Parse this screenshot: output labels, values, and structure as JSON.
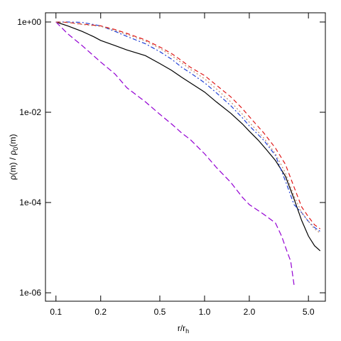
{
  "chart_data": {
    "type": "line",
    "xlabel": "r/r",
    "xlabel_sub": "h",
    "ylabel_parts": [
      "ρ(m) / ρ",
      "0",
      "(m)"
    ],
    "x_scale": "log",
    "y_scale": "log",
    "xlim": [
      0.085,
      6.5
    ],
    "ylim": [
      6.5e-07,
      1.6
    ],
    "x_ticks": [
      0.1,
      0.2,
      0.5,
      1.0,
      2.0,
      5.0
    ],
    "x_tick_labels": [
      "0.1",
      "0.2",
      "0.5",
      "1.0",
      "2.0",
      "5.0"
    ],
    "y_ticks": [
      1,
      0.01,
      0.0001,
      1e-06
    ],
    "y_tick_labels": [
      "1e+00",
      "1e-02",
      "1e-04",
      "1e-06"
    ],
    "grid": false,
    "legend": "none",
    "series": [
      {
        "color": "#000000",
        "dash": "",
        "x": [
          0.1,
          0.12,
          0.15,
          0.18,
          0.2,
          0.25,
          0.3,
          0.4,
          0.5,
          0.6,
          0.7,
          0.8,
          1.0,
          1.2,
          1.5,
          1.8,
          2.0,
          2.3,
          2.6,
          3.0,
          3.5,
          4.0,
          4.5,
          5.0,
          5.5,
          6.0
        ],
        "y": [
          1.0,
          0.82,
          0.62,
          0.47,
          0.39,
          0.3,
          0.24,
          0.18,
          0.12,
          0.085,
          0.06,
          0.045,
          0.028,
          0.017,
          0.0095,
          0.0055,
          0.0038,
          0.0024,
          0.0015,
          0.00085,
          0.00038,
          0.00012,
          4e-05,
          1.8e-05,
          1.1e-05,
          8.5e-06
        ]
      },
      {
        "color": "#9400d3",
        "dash": "8,4",
        "x": [
          0.1,
          0.12,
          0.15,
          0.2,
          0.25,
          0.3,
          0.4,
          0.5,
          0.6,
          0.7,
          0.8,
          1.0,
          1.2,
          1.5,
          1.8,
          2.0,
          2.5,
          3.0,
          3.3,
          3.6,
          3.8,
          4.0
        ],
        "y": [
          1.0,
          0.55,
          0.3,
          0.13,
          0.07,
          0.035,
          0.017,
          0.009,
          0.0055,
          0.0035,
          0.0025,
          0.0012,
          0.0006,
          0.00028,
          0.00013,
          9e-05,
          5.5e-05,
          3.5e-05,
          1.8e-05,
          8e-06,
          5e-06,
          1.5e-06
        ]
      },
      {
        "color": "#1f3fd6",
        "dash": "6,3,2,3",
        "x": [
          0.1,
          0.12,
          0.15,
          0.2,
          0.25,
          0.3,
          0.4,
          0.5,
          0.6,
          0.7,
          0.8,
          1.0,
          1.2,
          1.5,
          1.8,
          2.0,
          2.5,
          3.0,
          3.5,
          4.0,
          4.5,
          5.0,
          5.5,
          6.0
        ],
        "y": [
          1.0,
          1.0,
          0.98,
          0.82,
          0.62,
          0.48,
          0.33,
          0.22,
          0.15,
          0.1,
          0.075,
          0.045,
          0.027,
          0.014,
          0.0075,
          0.005,
          0.0024,
          0.0011,
          0.0003,
          9e-05,
          6e-05,
          3.8e-05,
          2.8e-05,
          2.3e-05
        ]
      },
      {
        "color": "#e01818",
        "dash": "6,4",
        "x": [
          0.1,
          0.12,
          0.15,
          0.2,
          0.25,
          0.3,
          0.4,
          0.5,
          0.6,
          0.7,
          0.8,
          1.0,
          1.2,
          1.5,
          1.8,
          2.0,
          2.5,
          3.0,
          3.5,
          4.0,
          4.5,
          5.0,
          5.5,
          6.0
        ],
        "y": [
          1.0,
          0.98,
          0.9,
          0.82,
          0.68,
          0.56,
          0.4,
          0.28,
          0.2,
          0.14,
          0.1,
          0.065,
          0.04,
          0.022,
          0.012,
          0.008,
          0.0035,
          0.0016,
          0.0007,
          0.00022,
          8e-05,
          4.8e-05,
          3.2e-05,
          2.6e-05
        ]
      },
      {
        "color": "#c08a6a",
        "dash": "2,3",
        "x": [
          0.1,
          0.12,
          0.15,
          0.2,
          0.25,
          0.3,
          0.4,
          0.5,
          0.6,
          0.7,
          0.8,
          1.0,
          1.2,
          1.5,
          1.8,
          2.0,
          2.5,
          3.0,
          3.5,
          4.0,
          4.5,
          5.0,
          5.5,
          6.0
        ],
        "y": [
          1.0,
          0.97,
          0.88,
          0.8,
          0.65,
          0.53,
          0.38,
          0.26,
          0.18,
          0.125,
          0.09,
          0.055,
          0.033,
          0.017,
          0.009,
          0.006,
          0.0027,
          0.0012,
          0.00045,
          0.00014,
          6e-05,
          3.8e-05,
          2.6e-05,
          2.1e-05
        ]
      }
    ]
  }
}
